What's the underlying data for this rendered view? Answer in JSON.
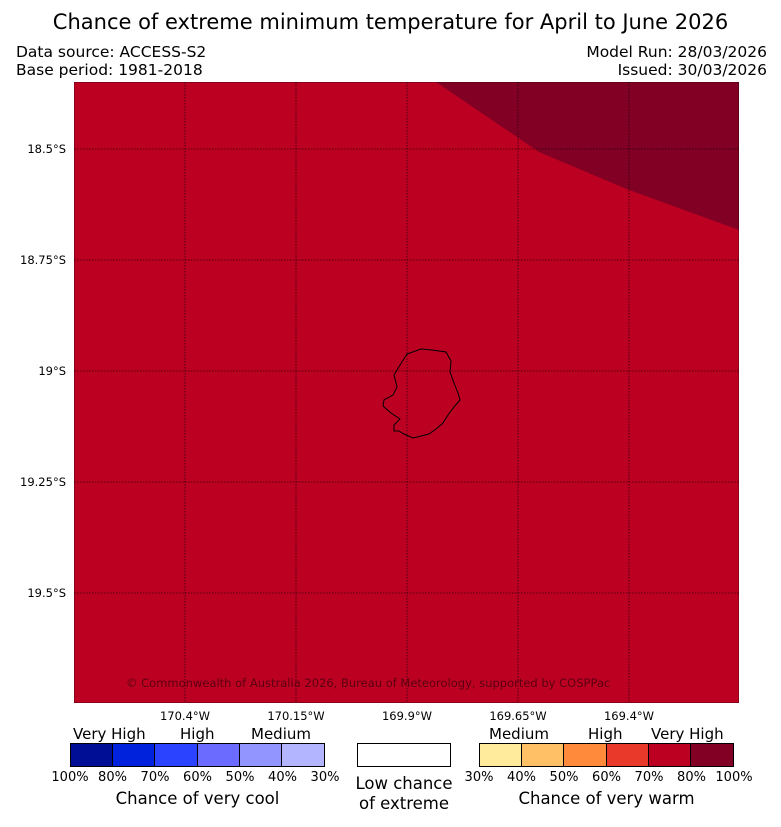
{
  "title": "Chance of extreme minimum temperature for April to June 2026",
  "data_source": "Data source: ACCESS-S2",
  "base_period": "Base period: 1981-2018",
  "model_run": "Model Run: 28/03/2026",
  "issued": "Issued: 30/03/2026",
  "copyright": "© Commonwealth of Australia 2026, Bureau of Meteorology, supported by COSPPac",
  "map": {
    "lat_labels": [
      "18.5°S",
      "18.75°S",
      "19°S",
      "19.25°S",
      "19.5°S"
    ],
    "lon_labels": [
      "170.4°W",
      "170.15°W",
      "169.9°W",
      "169.65°W",
      "169.4°W"
    ],
    "region_colors": {
      "high_70_80": "#bc0022",
      "very_high_80_100": "#810024"
    }
  },
  "legend": {
    "cool": {
      "categories": [
        "Very High",
        "High",
        "Medium"
      ],
      "colors": [
        "#000e96",
        "#0022dd",
        "#2b43ff",
        "#6b6cff",
        "#9294ff",
        "#b4b5ff"
      ],
      "ticks": [
        "100%",
        "80%",
        "70%",
        "60%",
        "50%",
        "40%",
        "30%"
      ],
      "caption": "Chance of very cool"
    },
    "neutral": {
      "label_line1": "Low chance",
      "label_line2": "of extreme",
      "color": "#ffffff"
    },
    "warm": {
      "categories": [
        "Medium",
        "High",
        "Very High"
      ],
      "colors": [
        "#ffeb9b",
        "#ffc066",
        "#ff8a3c",
        "#e8392b",
        "#bc0022",
        "#810024"
      ],
      "ticks": [
        "30%",
        "40%",
        "50%",
        "60%",
        "70%",
        "80%",
        "100%"
      ],
      "caption": "Chance of very warm"
    }
  }
}
